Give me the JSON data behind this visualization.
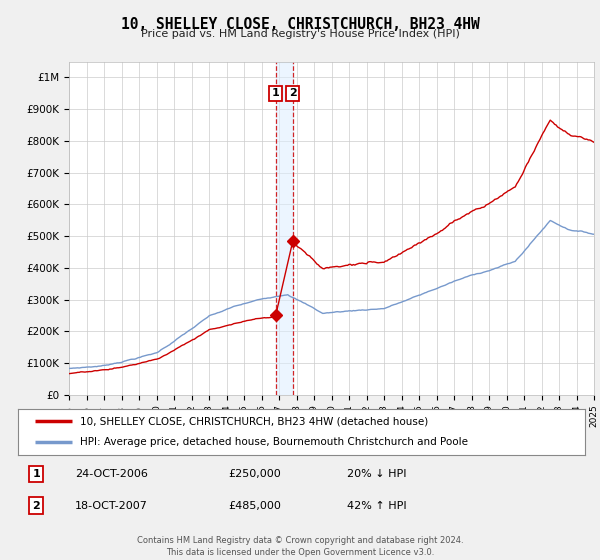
{
  "title": "10, SHELLEY CLOSE, CHRISTCHURCH, BH23 4HW",
  "subtitle": "Price paid vs. HM Land Registry's House Price Index (HPI)",
  "legend_line1": "10, SHELLEY CLOSE, CHRISTCHURCH, BH23 4HW (detached house)",
  "legend_line2": "HPI: Average price, detached house, Bournemouth Christchurch and Poole",
  "red_color": "#cc0000",
  "blue_color": "#7799cc",
  "background_color": "#f0f0f0",
  "plot_bg_color": "#ffffff",
  "grid_color": "#cccccc",
  "sale1_date": 2006.81,
  "sale1_label": "24-OCT-2006",
  "sale1_price": 250000,
  "sale1_pct": "20%",
  "sale1_dir": "↓",
  "sale2_date": 2007.79,
  "sale2_label": "18-OCT-2007",
  "sale2_price": 485000,
  "sale2_pct": "42%",
  "sale2_dir": "↑",
  "footer": "Contains HM Land Registry data © Crown copyright and database right 2024.\nThis data is licensed under the Open Government Licence v3.0.",
  "ylim_max": 1050000,
  "xmin": 1995,
  "xmax": 2025
}
